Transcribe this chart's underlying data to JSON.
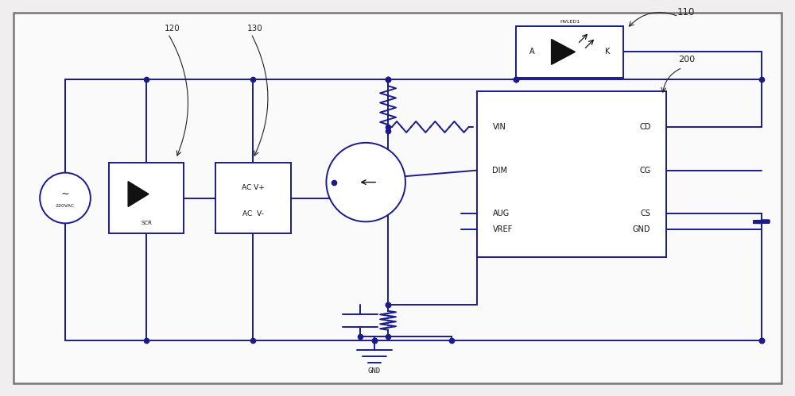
{
  "fig_width": 10.0,
  "fig_height": 4.99,
  "dpi": 100,
  "bg_color": "#f0eeee",
  "border_color": "#888888",
  "line_color": "#1a1a8c",
  "dark_color": "#111111",
  "text_color": "#222222",
  "lw": 1.4,
  "dot_size": 4.5,
  "xlim": [
    0,
    100
  ],
  "ylim": [
    0,
    50
  ]
}
